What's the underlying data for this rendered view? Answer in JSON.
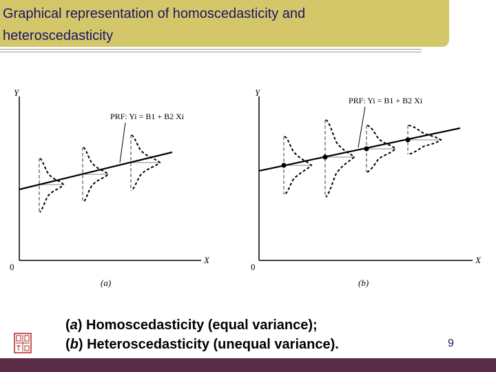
{
  "slide": {
    "title": "Graphical representation of homoscedasticity and heteroscedasticity",
    "caption_a_letter": "a",
    "caption_a_text": ") Homoscedasticity (equal variance);",
    "caption_b_letter": "b",
    "caption_b_text": ") Heteroscedasticity (unequal variance).",
    "page_number": "9",
    "colors": {
      "title_bar": "#d3c76a",
      "title_text": "#1b1464",
      "footer_bar": "#5b2c46"
    }
  },
  "panels": [
    {
      "y_label": "Y",
      "x_label": "X",
      "origin": "0",
      "sub_label": "(a)",
      "prf_label": "PRF: Yi = B1 + B2 Xi"
    },
    {
      "y_label": "Y",
      "x_label": "X",
      "origin": "0",
      "sub_label": "(b)",
      "prf_label": "PRF: Yi = B1 + B2 Xi"
    }
  ]
}
